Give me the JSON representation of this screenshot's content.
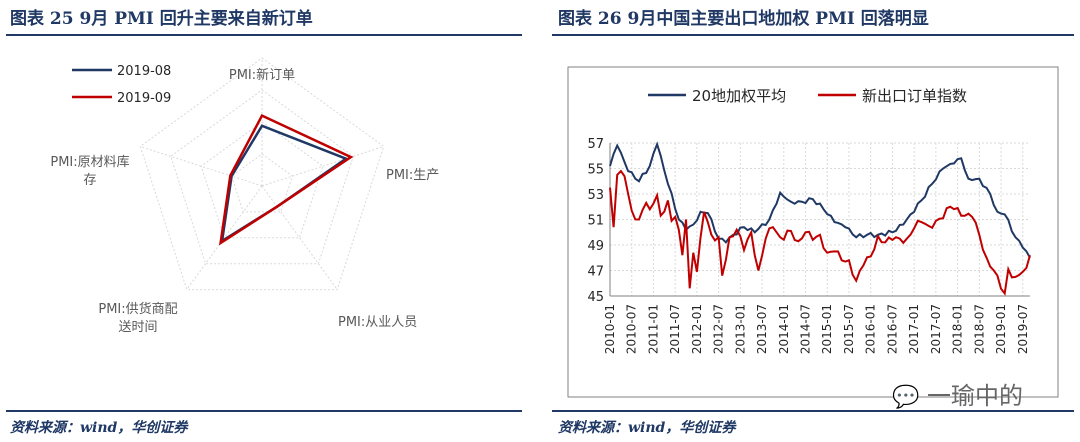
{
  "left": {
    "title": "图表 25   9月 PMI 回升主要来自新订单",
    "source": "资料来源：wind，华创证券"
  },
  "right": {
    "title": "图表 26   9月中国主要出口地加权 PMI 回落明显",
    "source": "资料来源：wind，华创证券"
  },
  "watermark": "一瑜中的",
  "colors": {
    "navy": "#1f3864",
    "red": "#c00000",
    "grid": "#d9d9d9"
  },
  "chart_data": [
    {
      "type": "radar",
      "axes": [
        "PMI:新订单",
        "PMI:生产",
        "PMI:从业人员",
        "PMI:供货商配送时间",
        "PMI:原材料库存"
      ],
      "axis_labels_lines": [
        [
          "PMI:新订单"
        ],
        [
          "PMI:生产"
        ],
        [
          "PMI:从业人员"
        ],
        [
          "PMI:供货商配",
          "送时间"
        ],
        [
          "PMI:原材料库",
          "存"
        ]
      ],
      "range": [
        45,
        55
      ],
      "legend_position": "top-left",
      "series": [
        {
          "name": "2019-08",
          "color": "#1f3864",
          "values": [
            49.7,
            51.9,
            47.0,
            50.3,
            47.5
          ]
        },
        {
          "name": "2019-09",
          "color": "#c00000",
          "values": [
            50.5,
            52.3,
            47.0,
            50.5,
            47.6
          ]
        }
      ]
    },
    {
      "type": "line",
      "ylim": [
        45,
        57
      ],
      "yticks": [
        45,
        47,
        49,
        51,
        53,
        55,
        57
      ],
      "x_start": "2010-01",
      "x_end": "2019-09",
      "xtick_labels": [
        "2010-01",
        "2010-07",
        "2011-01",
        "2011-07",
        "2012-01",
        "2012-07",
        "2013-01",
        "2013-07",
        "2014-01",
        "2014-07",
        "2015-01",
        "2015-07",
        "2016-01",
        "2016-07",
        "2017-01",
        "2017-07",
        "2018-01",
        "2018-07",
        "2019-01",
        "2019-07"
      ],
      "legend_position": "top-left",
      "series": [
        {
          "name": "20地加权平均",
          "color": "#1f3864",
          "anchors": [
            [
              "2010-01",
              55.2
            ],
            [
              "2010-03",
              56.8
            ],
            [
              "2010-06",
              54.8
            ],
            [
              "2010-09",
              54.0
            ],
            [
              "2010-12",
              55.2
            ],
            [
              "2011-02",
              56.9
            ],
            [
              "2011-05",
              53.8
            ],
            [
              "2011-08",
              51.0
            ],
            [
              "2011-10",
              50.2
            ],
            [
              "2011-12",
              50.6
            ],
            [
              "2012-02",
              51.6
            ],
            [
              "2012-04",
              51.5
            ],
            [
              "2012-07",
              49.5
            ],
            [
              "2012-09",
              49.2
            ],
            [
              "2012-11",
              49.8
            ],
            [
              "2013-02",
              50.4
            ],
            [
              "2013-05",
              50.0
            ],
            [
              "2013-09",
              51.0
            ],
            [
              "2013-12",
              53.1
            ],
            [
              "2014-03",
              52.4
            ],
            [
              "2014-06",
              52.4
            ],
            [
              "2014-09",
              52.6
            ],
            [
              "2014-12",
              51.8
            ],
            [
              "2015-03",
              50.8
            ],
            [
              "2015-06",
              50.4
            ],
            [
              "2015-09",
              49.6
            ],
            [
              "2015-12",
              49.8
            ],
            [
              "2016-03",
              49.8
            ],
            [
              "2016-07",
              50.0
            ],
            [
              "2016-10",
              50.6
            ],
            [
              "2016-12",
              51.4
            ],
            [
              "2017-03",
              52.5
            ],
            [
              "2017-06",
              53.8
            ],
            [
              "2017-09",
              55.0
            ],
            [
              "2017-12",
              55.4
            ],
            [
              "2018-02",
              55.8
            ],
            [
              "2018-04",
              54.2
            ],
            [
              "2018-07",
              54.2
            ],
            [
              "2018-10",
              53.0
            ],
            [
              "2018-12",
              51.6
            ],
            [
              "2019-02",
              51.4
            ],
            [
              "2019-05",
              49.6
            ],
            [
              "2019-07",
              48.8
            ],
            [
              "2019-09",
              48.0
            ]
          ]
        },
        {
          "name": "新出口订单指数",
          "color": "#c00000",
          "anchors": [
            [
              "2010-01",
              53.5
            ],
            [
              "2010-02",
              50.4
            ],
            [
              "2010-03",
              54.5
            ],
            [
              "2010-05",
              54.4
            ],
            [
              "2010-07",
              51.7
            ],
            [
              "2010-09",
              51.0
            ],
            [
              "2010-11",
              52.3
            ],
            [
              "2010-12",
              51.8
            ],
            [
              "2011-02",
              52.9
            ],
            [
              "2011-03",
              51.3
            ],
            [
              "2011-05",
              52.5
            ],
            [
              "2011-06",
              50.9
            ],
            [
              "2011-07",
              51.2
            ],
            [
              "2011-08",
              50.2
            ],
            [
              "2011-09",
              48.2
            ],
            [
              "2011-10",
              51.0
            ],
            [
              "2011-11",
              45.6
            ],
            [
              "2011-12",
              48.4
            ],
            [
              "2012-01",
              46.9
            ],
            [
              "2012-03",
              51.6
            ],
            [
              "2012-05",
              49.8
            ],
            [
              "2012-07",
              49.6
            ],
            [
              "2012-08",
              46.6
            ],
            [
              "2012-10",
              49.6
            ],
            [
              "2012-12",
              50.2
            ],
            [
              "2013-02",
              48.6
            ],
            [
              "2013-04",
              50.0
            ],
            [
              "2013-06",
              47.0
            ],
            [
              "2013-08",
              49.5
            ],
            [
              "2013-10",
              50.4
            ],
            [
              "2013-12",
              49.6
            ],
            [
              "2014-03",
              50.1
            ],
            [
              "2014-05",
              49.3
            ],
            [
              "2014-07",
              50.0
            ],
            [
              "2014-09",
              49.4
            ],
            [
              "2014-11",
              49.8
            ],
            [
              "2015-01",
              48.4
            ],
            [
              "2015-03",
              48.5
            ],
            [
              "2015-05",
              47.8
            ],
            [
              "2015-07",
              47.8
            ],
            [
              "2015-09",
              46.2
            ],
            [
              "2015-11",
              47.4
            ],
            [
              "2016-01",
              48.1
            ],
            [
              "2016-03",
              49.7
            ],
            [
              "2016-05",
              49.2
            ],
            [
              "2016-07",
              49.4
            ],
            [
              "2016-09",
              49.5
            ],
            [
              "2016-11",
              49.5
            ],
            [
              "2017-01",
              50.3
            ],
            [
              "2017-03",
              50.8
            ],
            [
              "2017-05",
              50.5
            ],
            [
              "2017-07",
              50.9
            ],
            [
              "2017-09",
              51.1
            ],
            [
              "2017-11",
              52.0
            ],
            [
              "2018-01",
              51.9
            ],
            [
              "2018-03",
              51.3
            ],
            [
              "2018-05",
              51.2
            ],
            [
              "2018-07",
              49.8
            ],
            [
              "2018-09",
              48.0
            ],
            [
              "2018-11",
              47.0
            ],
            [
              "2018-12",
              46.6
            ],
            [
              "2019-02",
              45.2
            ],
            [
              "2019-03",
              47.1
            ],
            [
              "2019-05",
              46.5
            ],
            [
              "2019-07",
              46.9
            ],
            [
              "2019-08",
              47.2
            ],
            [
              "2019-09",
              48.2
            ]
          ]
        }
      ]
    }
  ]
}
